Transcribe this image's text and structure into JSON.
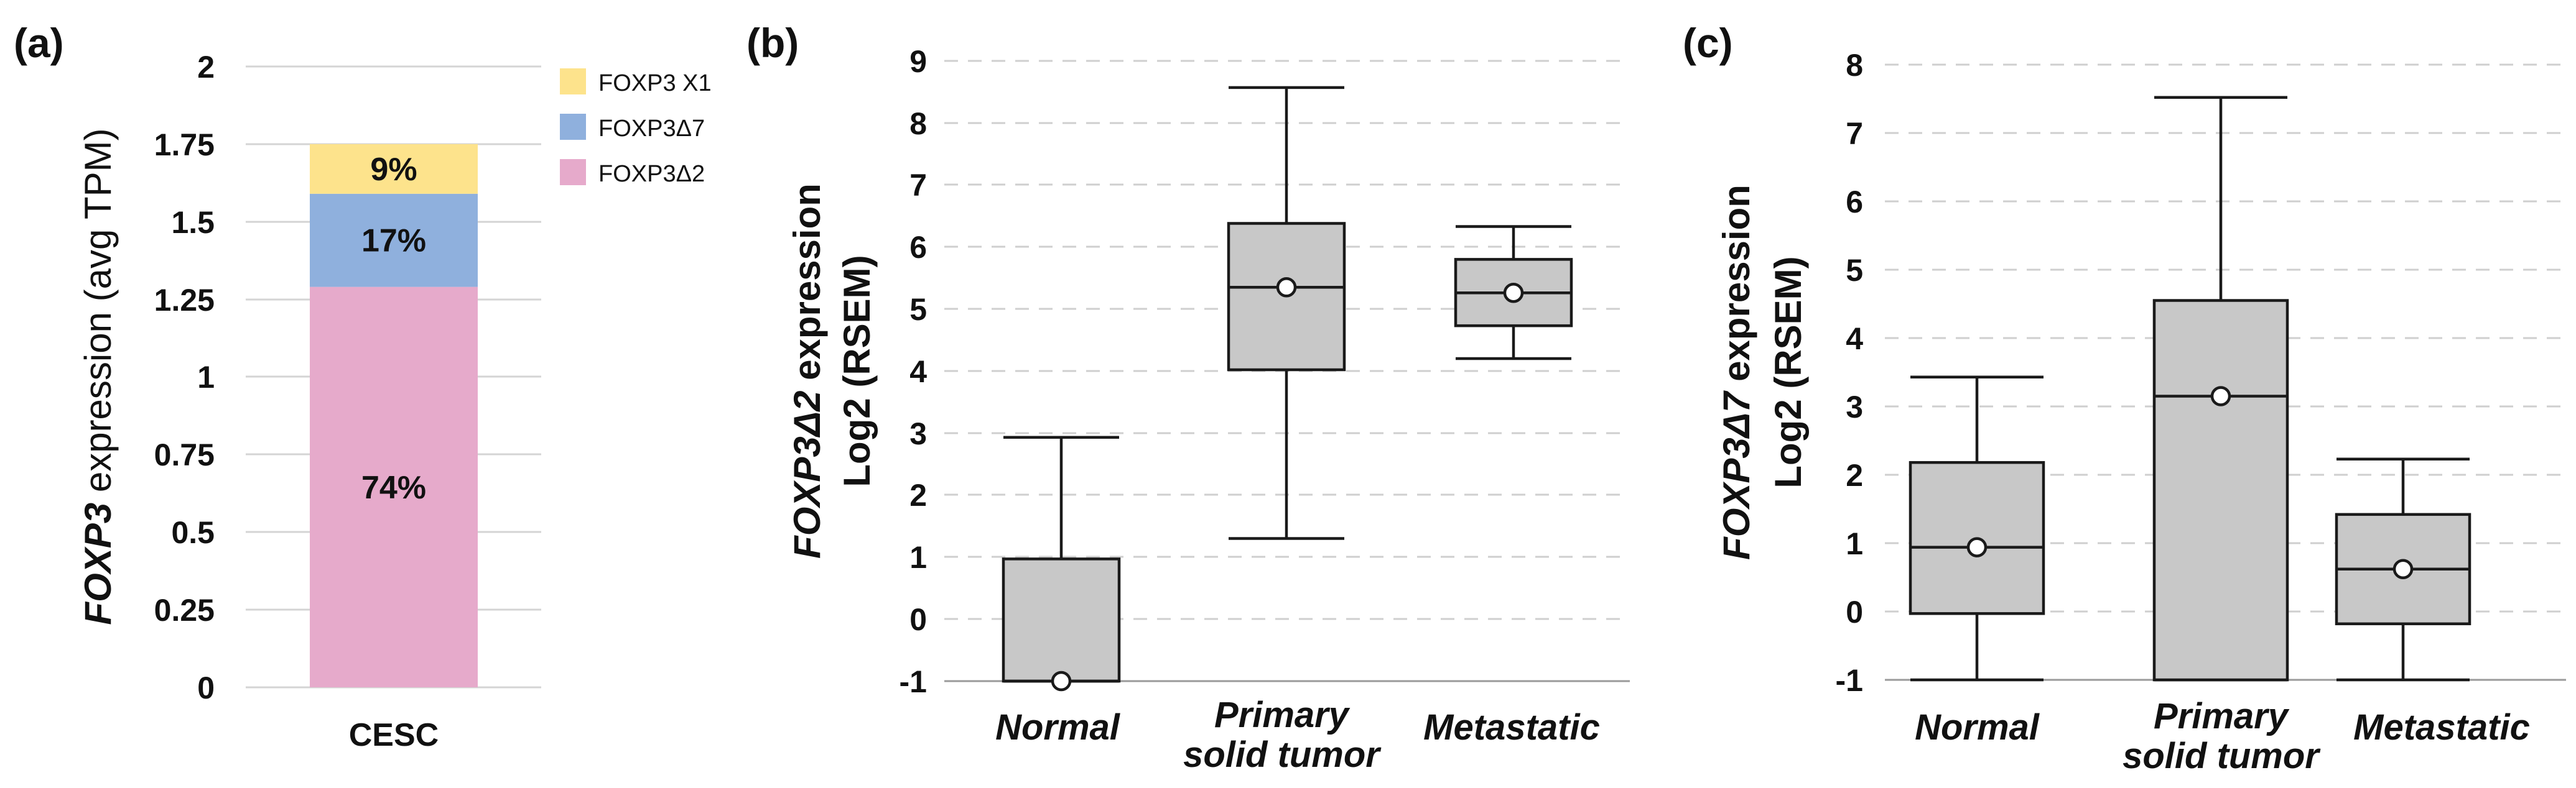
{
  "panels": {
    "a": {
      "letter": "(a)",
      "ylabel_italic": "FOXP3",
      "ylabel_rest": " expression (avg TPM)",
      "y_ticks": [
        "0",
        "0.25",
        "0.5",
        "0.75",
        "1",
        "1.25",
        "1.5",
        "1.75",
        "2"
      ],
      "category": "CESC"
    },
    "b": {
      "letter": "(b)",
      "ylabel_line1_italic": "FOXP3Δ2",
      "ylabel_line1_rest": " expression",
      "ylabel_line2": "Log2 (RSEM)",
      "y_ticks": [
        "-1",
        "0",
        "1",
        "2",
        "3",
        "4",
        "5",
        "6",
        "7",
        "8",
        "9"
      ],
      "categories": [
        {
          "line1": "Normal",
          "line2": ""
        },
        {
          "line1": "Primary",
          "line2": "solid tumor"
        },
        {
          "line1": "Metastatic",
          "line2": ""
        }
      ]
    },
    "c": {
      "letter": "(c)",
      "ylabel_line1_italic": "FOXP3Δ7",
      "ylabel_line1_rest": " expression",
      "ylabel_line2": "Log2 (RSEM)",
      "y_ticks": [
        "-1",
        "0",
        "1",
        "2",
        "3",
        "4",
        "5",
        "6",
        "7",
        "8"
      ],
      "categories": [
        {
          "line1": "Normal",
          "line2": ""
        },
        {
          "line1": "Primary",
          "line2": "solid tumor"
        },
        {
          "line1": "Metastatic",
          "line2": ""
        }
      ]
    }
  },
  "chart_data": [
    {
      "type": "bar",
      "stacked": true,
      "title": "",
      "xlabel": "",
      "ylabel": "FOXP3 expression (avg TPM)",
      "ylim": [
        0,
        2
      ],
      "categories": [
        "CESC"
      ],
      "series": [
        {
          "name": "FOXP3Δ2",
          "values": [
            1.29
          ],
          "label": "74%",
          "color": "#e6aacb"
        },
        {
          "name": "FOXP3Δ7",
          "values": [
            0.3
          ],
          "label": "17%",
          "color": "#8fb0dd"
        },
        {
          "name": "FOXP3 X1",
          "values": [
            0.16
          ],
          "label": "9%",
          "color": "#fde38c"
        }
      ],
      "legend": {
        "position": "top-right",
        "entries": [
          "FOXP3 X1",
          "FOXP3Δ7",
          "FOXP3Δ2"
        ]
      }
    },
    {
      "type": "box",
      "title": "",
      "ylabel": "FOXP3Δ2 expression Log2 (RSEM)",
      "ylim": [
        -1,
        9
      ],
      "categories": [
        "Normal",
        "Primary solid tumor",
        "Metastatic"
      ],
      "boxes": [
        {
          "category": "Normal",
          "min": -1.0,
          "q1": -1.0,
          "median": -1.0,
          "q3": 0.97,
          "max": 2.93,
          "mean": -1.0
        },
        {
          "category": "Primary solid tumor",
          "min": 1.3,
          "q1": 4.02,
          "median": 5.35,
          "q3": 6.38,
          "max": 8.57,
          "mean": 5.35
        },
        {
          "category": "Metastatic",
          "min": 4.2,
          "q1": 4.73,
          "median": 5.26,
          "q3": 5.8,
          "max": 6.33,
          "mean": 5.26
        }
      ]
    },
    {
      "type": "box",
      "title": "",
      "ylabel": "FOXP3Δ7 expression Log2 (RSEM)",
      "ylim": [
        -1,
        8
      ],
      "categories": [
        "Normal",
        "Primary solid tumor",
        "Metastatic"
      ],
      "boxes": [
        {
          "category": "Normal",
          "min": -1.0,
          "q1": -0.03,
          "median": 0.94,
          "q3": 2.18,
          "max": 3.43,
          "mean": 0.94
        },
        {
          "category": "Primary solid tumor",
          "min": -1.0,
          "q1": -1.0,
          "median": 3.15,
          "q3": 4.55,
          "max": 7.52,
          "mean": 3.15
        },
        {
          "category": "Metastatic",
          "min": -1.0,
          "q1": -0.18,
          "median": 0.62,
          "q3": 1.42,
          "max": 2.23,
          "mean": 0.62
        }
      ]
    }
  ]
}
